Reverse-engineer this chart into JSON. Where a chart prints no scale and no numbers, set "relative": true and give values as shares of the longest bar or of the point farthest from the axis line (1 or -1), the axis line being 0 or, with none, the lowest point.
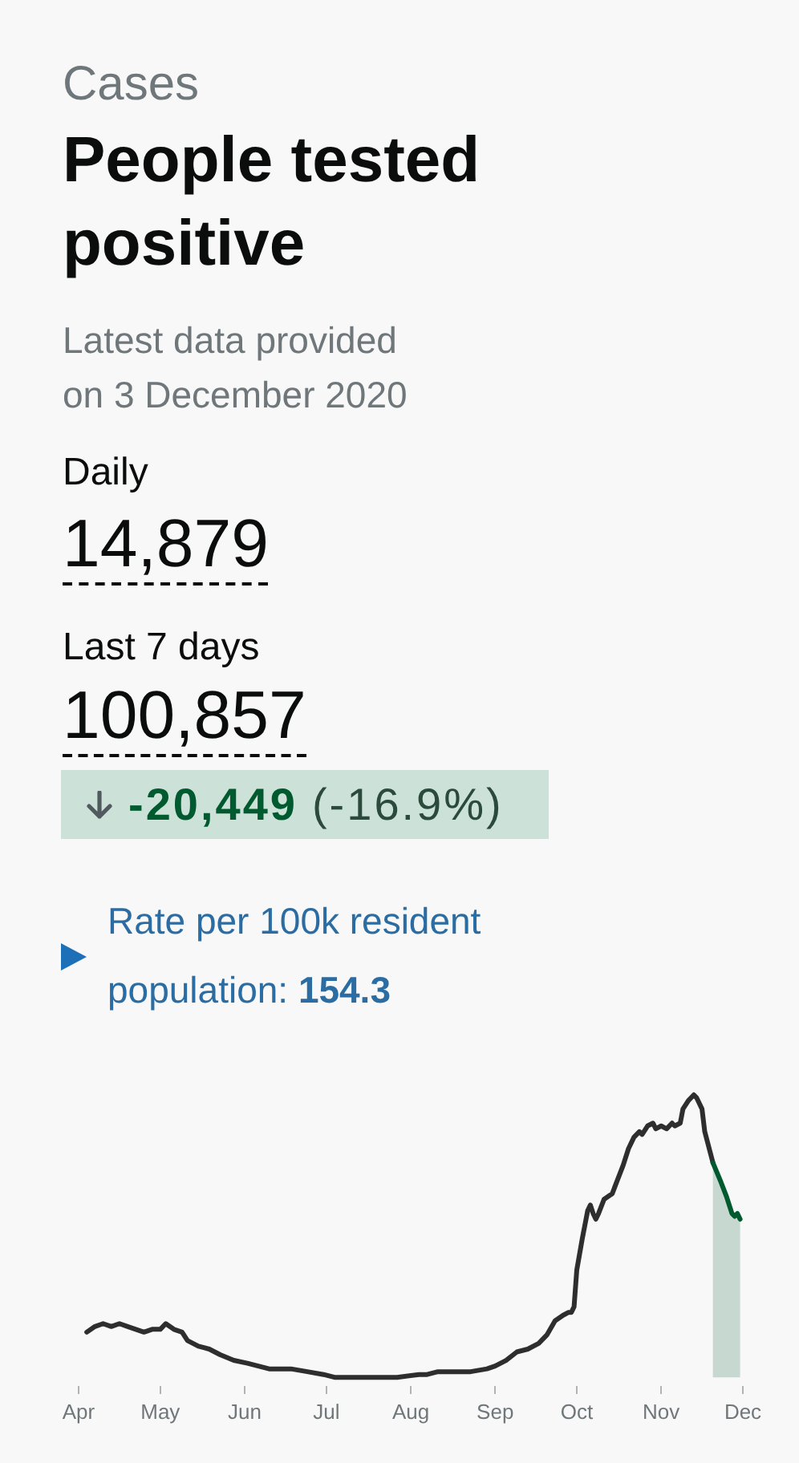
{
  "chart_data": {
    "type": "line",
    "title": "People tested positive",
    "subtitle": "Latest data provided on 3 December 2020",
    "annotations": [
      "Cases",
      "Daily",
      "14,879",
      "Last 7 days",
      "100,857",
      "-20,449",
      "(-16.9%)",
      "Rate per 100k resident population:",
      "154.3"
    ],
    "relative": true,
    "tick_labels": "x",
    "xlim": [
      "2020-04-01",
      "2020-12-01"
    ],
    "xticks": [
      {
        "value": "2020-04-01",
        "label": "Apr"
      },
      {
        "value": "2020-05-01",
        "label": "May"
      },
      {
        "value": "2020-06-01",
        "label": "Jun"
      },
      {
        "value": "2020-07-01",
        "label": "Jul"
      },
      {
        "value": "2020-08-01",
        "label": "Aug"
      },
      {
        "value": "2020-09-01",
        "label": "Sep"
      },
      {
        "value": "2020-10-01",
        "label": "Oct"
      },
      {
        "value": "2020-11-01",
        "label": "Nov"
      },
      {
        "value": "2020-12-01",
        "label": "Dec"
      }
    ],
    "series": [
      {
        "color": "#2e2e2e",
        "x": [
          "2020-04-04",
          "2020-04-07",
          "2020-04-10",
          "2020-04-13",
          "2020-04-16",
          "2020-04-19",
          "2020-04-22",
          "2020-04-25",
          "2020-04-28",
          "2020-05-01",
          "2020-05-03",
          "2020-05-06",
          "2020-05-09",
          "2020-05-11",
          "2020-05-15",
          "2020-05-19",
          "2020-05-23",
          "2020-05-28",
          "2020-06-02",
          "2020-06-06",
          "2020-06-10",
          "2020-06-18",
          "2020-06-24",
          "2020-06-30",
          "2020-07-04",
          "2020-07-11",
          "2020-07-19",
          "2020-07-27",
          "2020-08-04",
          "2020-08-07",
          "2020-08-11",
          "2020-08-17",
          "2020-08-23",
          "2020-08-29",
          "2020-09-01",
          "2020-09-05",
          "2020-09-09",
          "2020-09-13",
          "2020-09-17",
          "2020-09-20",
          "2020-09-23",
          "2020-09-26",
          "2020-09-28",
          "2020-09-29",
          "2020-09-30",
          "2020-10-01",
          "2020-10-03",
          "2020-10-05",
          "2020-10-06",
          "2020-10-07",
          "2020-10-08",
          "2020-10-09",
          "2020-10-11",
          "2020-10-14",
          "2020-10-16",
          "2020-10-18",
          "2020-10-20",
          "2020-10-22",
          "2020-10-24",
          "2020-10-25",
          "2020-10-27",
          "2020-10-29",
          "2020-10-30",
          "2020-11-01",
          "2020-11-03",
          "2020-11-05",
          "2020-11-06",
          "2020-11-08",
          "2020-11-09",
          "2020-11-11",
          "2020-11-13",
          "2020-11-14",
          "2020-11-16",
          "2020-11-17",
          "2020-11-20"
        ],
        "values": [
          0.16,
          0.18,
          0.19,
          0.18,
          0.19,
          0.18,
          0.17,
          0.16,
          0.17,
          0.17,
          0.19,
          0.17,
          0.16,
          0.13,
          0.11,
          0.1,
          0.08,
          0.06,
          0.05,
          0.04,
          0.03,
          0.03,
          0.02,
          0.01,
          0,
          0,
          0,
          0,
          0.01,
          0.01,
          0.02,
          0.02,
          0.02,
          0.03,
          0.04,
          0.06,
          0.09,
          0.1,
          0.12,
          0.15,
          0.2,
          0.22,
          0.23,
          0.23,
          0.25,
          0.38,
          0.49,
          0.59,
          0.61,
          0.58,
          0.56,
          0.58,
          0.63,
          0.65,
          0.7,
          0.75,
          0.81,
          0.85,
          0.87,
          0.86,
          0.89,
          0.9,
          0.88,
          0.89,
          0.88,
          0.9,
          0.89,
          0.9,
          0.95,
          0.98,
          1,
          0.99,
          0.95,
          0.87,
          0.76
        ]
      },
      {
        "type": "area",
        "color": "#005a30",
        "x": [
          "2020-11-20",
          "2020-11-23",
          "2020-11-25",
          "2020-11-27",
          "2020-11-28",
          "2020-11-29",
          "2020-11-30"
        ],
        "values": [
          0.76,
          0.69,
          0.64,
          0.58,
          0.57,
          0.58,
          0.56
        ]
      }
    ]
  }
}
